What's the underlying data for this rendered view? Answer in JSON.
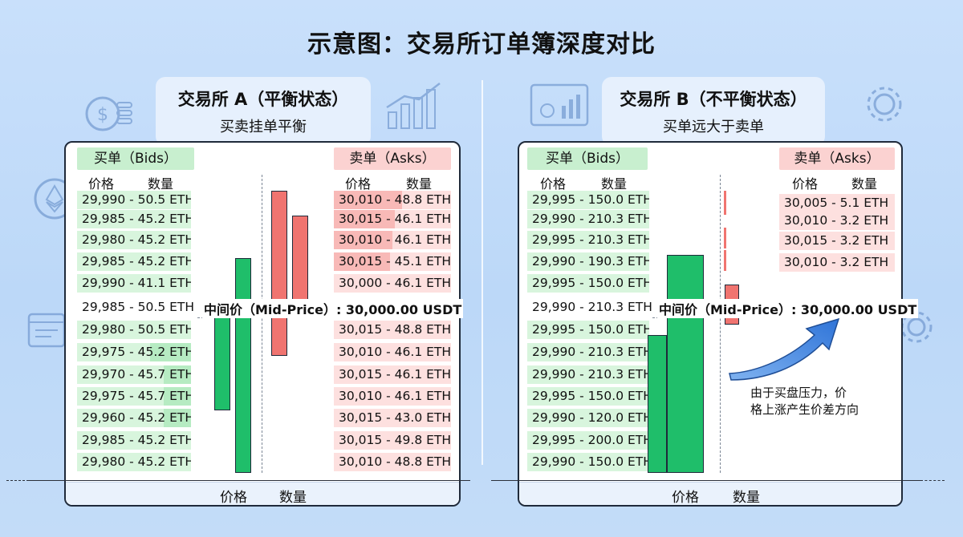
{
  "title": "示意图：交易所订单簿深度对比",
  "exchange_a": {
    "name": "交易所 A（平衡状态）",
    "subtitle": "买卖挂单平衡",
    "bids_label": "买单（Bids）",
    "asks_label": "卖单（Asks）",
    "price_col": "价格",
    "qty_col": "数量",
    "bids_top": [
      {
        "text": "29,990 - 50.5 ETH",
        "depth": 1.0
      },
      {
        "text": "29,985 - 45.2 ETH",
        "depth": 1.0
      },
      {
        "text": "29,980 - 45.2 ETH",
        "depth": 1.0
      },
      {
        "text": "29,985 - 45.2 ETH",
        "depth": 1.0
      },
      {
        "text": "29,990 - 41.1 ETH",
        "depth": 1.0
      }
    ],
    "mid_row": "29,985 - 50.5 ETH",
    "bids_bottom": [
      {
        "text": "29,980 - 50.5 ETH",
        "depth": 1.0
      },
      {
        "text": "29,975 - 45.2 ETH",
        "depth": 0.45
      },
      {
        "text": "29,970 - 45.7 ETH",
        "depth": 0.25
      },
      {
        "text": "29,975 - 45.7 ETH",
        "depth": 0.25
      },
      {
        "text": "29,960 - 45.2 ETH",
        "depth": 0.25
      },
      {
        "text": "29,985 - 45.2 ETH",
        "depth": 0.15
      },
      {
        "text": "29,980 - 45.2 ETH",
        "depth": 0.15
      }
    ],
    "asks_top": [
      {
        "text": "30,010 - 48.8 ETH",
        "depth": 0.95
      },
      {
        "text": "30,015 - 46.1 ETH",
        "depth": 0.55
      },
      {
        "text": "30,010 - 46.1 ETH",
        "depth": 0.5
      },
      {
        "text": "30,015 - 45.1 ETH",
        "depth": 0.45
      },
      {
        "text": "30,000 - 46.1 ETH",
        "depth": 0.0
      }
    ],
    "asks_bottom": [
      {
        "text": "30,015 - 48.8 ETH"
      },
      {
        "text": "30,010 - 46.1 ETH"
      },
      {
        "text": "30,015 - 46.1 ETH"
      },
      {
        "text": "30,010 - 46.1 ETH"
      },
      {
        "text": "30,015 - 43.0 ETH"
      },
      {
        "text": "30,015 - 49.8 ETH"
      },
      {
        "text": "30,010 - 48.8 ETH"
      }
    ],
    "mid_price_label": "中间价（Mid-Price）: 30,000.00 USDT",
    "x_axis_price": "价格",
    "x_axis_qty": "数量"
  },
  "exchange_b": {
    "name": "交易所 B（不平衡状态）",
    "subtitle": "买单远大于卖单",
    "bids_label": "买单（Bids）",
    "asks_label": "卖单（Asks）",
    "price_col": "价格",
    "qty_col": "数量",
    "bids_top": [
      {
        "text": "29,995 - 150.0 ETH"
      },
      {
        "text": "29,990 - 210.3 ETH"
      },
      {
        "text": "29,995 - 210.3 ETH"
      },
      {
        "text": "29,990 - 190.3 ETH"
      },
      {
        "text": "29,995 - 150.0 ETH"
      }
    ],
    "mid_row": "29,990 - 210.3 ETH",
    "bids_bottom": [
      {
        "text": "29,995 - 150.0 ETH"
      },
      {
        "text": "29,990 - 210.3 ETH"
      },
      {
        "text": "29,990 - 210.3 ETH"
      },
      {
        "text": "29,995 - 150.0 ETH"
      },
      {
        "text": "29,990 - 120.0 ETH"
      },
      {
        "text": "29,995 - 200.0 ETH"
      },
      {
        "text": "29,990 - 150.0 ETH"
      }
    ],
    "asks": [
      {
        "text": "30,005 - 5.1 ETH"
      },
      {
        "text": "30,010 - 3.2 ETH"
      },
      {
        "text": "30,015 - 3.2 ETH"
      },
      {
        "text": "30,010 - 3.2 ETH"
      }
    ],
    "mid_price_label": "中间价（Mid-Price）: 30,000.00 USDT",
    "note_line1": "由于买盘压力，价",
    "note_line2": "格上涨产生价差方向",
    "x_axis_price": "价格",
    "x_axis_qty": "数量"
  },
  "colors": {
    "bid_green": "#1fbe6a",
    "ask_red": "#f07470",
    "bid_bg": "#d8f5dd",
    "ask_bg": "#fde0df",
    "arrow_blue": "#2f74d8"
  },
  "icons": [
    "dollar-coins-icon",
    "ethereum-icon",
    "bar-chart-icon",
    "gear-icon",
    "document-icon",
    "browser-window-icon"
  ]
}
